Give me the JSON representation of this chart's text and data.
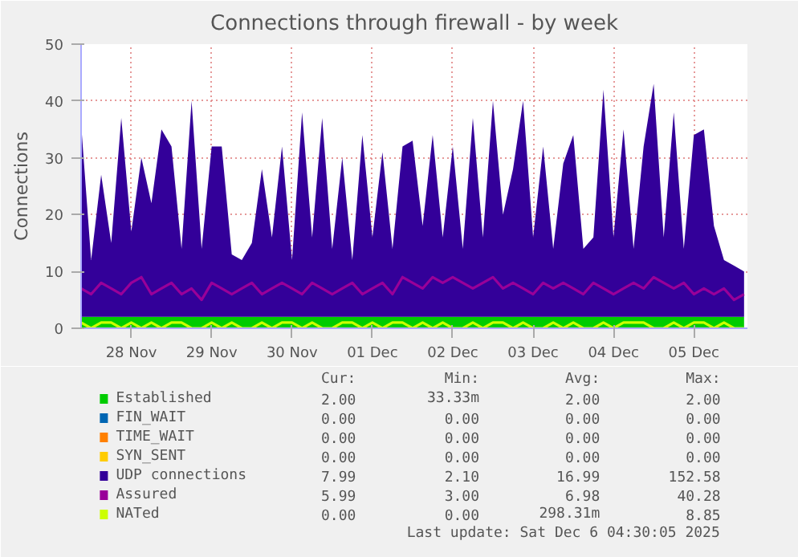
{
  "chart_data": {
    "type": "area",
    "stacked": true,
    "title": "Connections through firewall - by week",
    "ylabel": "Connections",
    "x": [
      "2025-11-27T21:00",
      "2025-11-28T00:00",
      "2025-11-28T03:00",
      "2025-11-28T06:00",
      "2025-11-28T09:00",
      "2025-11-28T12:00",
      "2025-11-28T15:00",
      "2025-11-28T18:00",
      "2025-11-28T21:00",
      "2025-11-29T00:00",
      "2025-11-29T03:00",
      "2025-11-29T06:00",
      "2025-11-29T09:00",
      "2025-11-29T12:00",
      "2025-11-29T15:00",
      "2025-11-29T18:00",
      "2025-11-29T21:00",
      "2025-11-30T00:00",
      "2025-11-30T03:00",
      "2025-11-30T06:00",
      "2025-11-30T09:00",
      "2025-11-30T12:00",
      "2025-11-30T15:00",
      "2025-11-30T18:00",
      "2025-11-30T21:00",
      "2025-12-01T00:00",
      "2025-12-01T03:00",
      "2025-12-01T06:00",
      "2025-12-01T09:00",
      "2025-12-01T12:00",
      "2025-12-01T15:00",
      "2025-12-01T18:00",
      "2025-12-01T21:00",
      "2025-12-02T00:00",
      "2025-12-02T03:00",
      "2025-12-02T06:00",
      "2025-12-02T09:00",
      "2025-12-02T12:00",
      "2025-12-02T15:00",
      "2025-12-02T18:00",
      "2025-12-02T21:00",
      "2025-12-03T00:00",
      "2025-12-03T03:00",
      "2025-12-03T06:00",
      "2025-12-03T09:00",
      "2025-12-03T12:00",
      "2025-12-03T15:00",
      "2025-12-03T18:00",
      "2025-12-03T21:00",
      "2025-12-04T00:00",
      "2025-12-04T03:00",
      "2025-12-04T06:00",
      "2025-12-04T09:00",
      "2025-12-04T12:00",
      "2025-12-04T15:00",
      "2025-12-04T18:00",
      "2025-12-04T21:00",
      "2025-12-05T00:00",
      "2025-12-05T03:00",
      "2025-12-05T06:00",
      "2025-12-05T09:00",
      "2025-12-05T12:00",
      "2025-12-05T15:00",
      "2025-12-05T18:00",
      "2025-12-05T21:00",
      "2025-12-06T00:00",
      "2025-12-06T03:00"
    ],
    "xlim": [
      "2025-11-27T21:00",
      "2025-12-06T04:00"
    ],
    "xticks": [
      {
        "value": "2025-11-28T12:00",
        "label": "28 Nov"
      },
      {
        "value": "2025-11-29T12:00",
        "label": "29 Nov"
      },
      {
        "value": "2025-11-30T12:00",
        "label": "30 Nov"
      },
      {
        "value": "2025-12-01T12:00",
        "label": "01 Dec"
      },
      {
        "value": "2025-12-02T12:00",
        "label": "02 Dec"
      },
      {
        "value": "2025-12-03T12:00",
        "label": "03 Dec"
      },
      {
        "value": "2025-12-04T12:00",
        "label": "04 Dec"
      },
      {
        "value": "2025-12-05T12:00",
        "label": "05 Dec"
      }
    ],
    "ylim": [
      0,
      50
    ],
    "yticks": [
      0,
      10,
      20,
      30,
      40,
      50
    ],
    "grid": true,
    "legend": "bottom",
    "series": [
      {
        "name": "Established",
        "color": "#00cc00",
        "values": [
          2,
          2,
          2,
          2,
          2,
          2,
          2,
          2,
          2,
          2,
          2,
          2,
          2,
          2,
          2,
          2,
          2,
          2,
          2,
          2,
          2,
          2,
          2,
          2,
          2,
          2,
          2,
          2,
          2,
          2,
          2,
          2,
          2,
          2,
          2,
          2,
          2,
          2,
          2,
          2,
          2,
          2,
          2,
          2,
          2,
          2,
          2,
          2,
          2,
          2,
          2,
          2,
          2,
          2,
          2,
          2,
          2,
          2,
          2,
          2,
          2,
          2,
          2,
          2,
          2,
          2,
          2
        ]
      },
      {
        "name": "FIN_WAIT",
        "color": "#0066b3",
        "values": [
          null,
          null,
          null,
          null,
          null,
          null,
          null,
          null,
          null,
          null,
          null,
          null,
          null,
          null,
          null,
          null,
          null,
          null,
          null,
          null,
          null,
          null,
          null,
          null,
          null,
          null,
          null,
          null,
          null,
          null,
          null,
          null,
          null,
          null,
          null,
          null,
          null,
          null,
          null,
          null,
          null,
          null,
          null,
          null,
          null,
          null,
          null,
          null,
          null,
          null,
          null,
          null,
          null,
          null,
          null,
          null,
          null,
          null,
          null,
          null,
          null,
          null,
          null,
          null,
          null,
          null,
          null
        ]
      },
      {
        "name": "TIME_WAIT",
        "color": "#ff8000",
        "values": [
          null,
          null,
          null,
          null,
          null,
          null,
          null,
          null,
          null,
          null,
          null,
          null,
          null,
          null,
          null,
          null,
          null,
          null,
          null,
          null,
          null,
          null,
          null,
          null,
          null,
          null,
          null,
          null,
          null,
          null,
          null,
          null,
          null,
          null,
          null,
          null,
          null,
          null,
          null,
          null,
          null,
          null,
          null,
          null,
          null,
          null,
          null,
          null,
          null,
          null,
          null,
          null,
          null,
          null,
          null,
          null,
          null,
          null,
          null,
          null,
          null,
          null,
          null,
          null,
          null,
          null,
          null
        ]
      },
      {
        "name": "SYN_SENT",
        "color": "#ffcc00",
        "values": [
          null,
          null,
          null,
          null,
          null,
          null,
          null,
          null,
          null,
          null,
          null,
          null,
          null,
          null,
          null,
          null,
          null,
          null,
          null,
          null,
          null,
          null,
          null,
          null,
          null,
          null,
          null,
          null,
          null,
          null,
          null,
          null,
          null,
          null,
          null,
          null,
          null,
          null,
          null,
          null,
          null,
          null,
          null,
          null,
          null,
          null,
          null,
          null,
          null,
          null,
          null,
          null,
          null,
          null,
          null,
          null,
          null,
          null,
          null,
          null,
          null,
          null,
          null,
          null,
          null,
          null,
          null
        ]
      },
      {
        "name": "UDP connections",
        "color": "#330099",
        "values": [
          34,
          10,
          25,
          13,
          35,
          15,
          28,
          20,
          33,
          30,
          12,
          38,
          12,
          30,
          30,
          11,
          10,
          13,
          26,
          14,
          30,
          10,
          36,
          14,
          35,
          12,
          28,
          10,
          32,
          14,
          29,
          12,
          30,
          31,
          16,
          32,
          14,
          30,
          12,
          35,
          14,
          38,
          18,
          26,
          38,
          14,
          30,
          12,
          27,
          32,
          12,
          14,
          40,
          14,
          33,
          12,
          30,
          41,
          14,
          36,
          12,
          32,
          33,
          16,
          10,
          9,
          8
        ]
      },
      {
        "name": "Assured",
        "color": "#990099",
        "type": "line",
        "values": [
          7,
          6,
          8,
          7,
          6,
          8,
          9,
          6,
          7,
          8,
          6,
          7,
          5,
          8,
          7,
          6,
          7,
          8,
          6,
          7,
          8,
          7,
          6,
          8,
          7,
          6,
          7,
          8,
          6,
          7,
          8,
          6,
          9,
          8,
          7,
          9,
          8,
          9,
          8,
          7,
          8,
          9,
          7,
          8,
          7,
          6,
          8,
          7,
          8,
          7,
          6,
          8,
          7,
          6,
          7,
          8,
          7,
          9,
          8,
          7,
          8,
          6,
          7,
          6,
          7,
          5,
          6
        ]
      },
      {
        "name": "NATed",
        "color": "#ccff00",
        "type": "line",
        "values": [
          1,
          0,
          1,
          1,
          0,
          1,
          0,
          1,
          0,
          1,
          1,
          0,
          0,
          1,
          0,
          1,
          0,
          0,
          1,
          0,
          1,
          1,
          0,
          1,
          0,
          0,
          1,
          1,
          0,
          1,
          0,
          1,
          1,
          0,
          1,
          0,
          1,
          0,
          0,
          1,
          0,
          1,
          1,
          0,
          1,
          0,
          0,
          1,
          0,
          1,
          0,
          0,
          1,
          0,
          1,
          1,
          1,
          0,
          0,
          1,
          0,
          1,
          1,
          0,
          1,
          0,
          0
        ]
      }
    ],
    "annotations": [
      "Cur:",
      "Min:",
      "Avg:",
      "Max:",
      "2.00",
      "33.33m",
      "2.00",
      "2.00",
      "0.00",
      "0.00",
      "0.00",
      "0.00",
      "0.00",
      "0.00",
      "0.00",
      "0.00",
      "0.00",
      "0.00",
      "0.00",
      "0.00",
      "7.99",
      "2.10",
      "16.99",
      "152.58",
      "5.99",
      "3.00",
      "6.98",
      "40.28",
      "0.00",
      "0.00",
      "298.31m",
      "8.85",
      "Last update: Sat Dec  6 04:30:05 2025"
    ]
  }
}
